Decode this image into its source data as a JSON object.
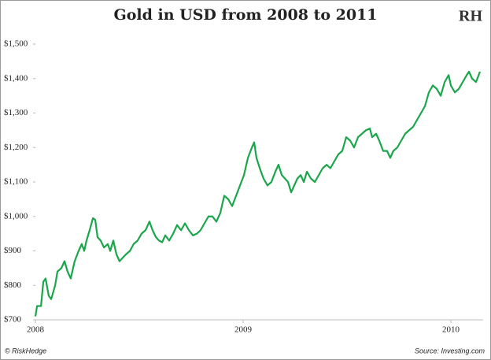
{
  "chart_data": {
    "type": "line",
    "title": "Gold in USD from 2008 to 2011",
    "logo": "RH",
    "credit": "© RiskHedge",
    "source": "Source: Investing.com",
    "color": "#1aa64a",
    "xlim": [
      2008,
      2010.14
    ],
    "xticks": [
      2008,
      2009,
      2010
    ],
    "ylim": [
      700,
      1500
    ],
    "yticks": [
      {
        "value": 700,
        "label": "$700"
      },
      {
        "value": 800,
        "label": "$800"
      },
      {
        "value": 900,
        "label": "$900"
      },
      {
        "value": 1000,
        "label": "$1,000"
      },
      {
        "value": 1100,
        "label": "$1,100"
      },
      {
        "value": 1200,
        "label": "$1,200"
      },
      {
        "value": 1300,
        "label": "$1,300"
      },
      {
        "value": 1400,
        "label": "$1,400"
      },
      {
        "value": 1500,
        "label": "$1,500"
      }
    ],
    "x": [
      2008.0,
      2008.008,
      2008.027,
      2008.038,
      2008.049,
      2008.064,
      2008.076,
      2008.095,
      2008.106,
      2008.125,
      2008.14,
      2008.155,
      2008.17,
      2008.189,
      2008.208,
      2008.223,
      2008.235,
      2008.246,
      2008.261,
      2008.277,
      2008.288,
      2008.299,
      2008.314,
      2008.33,
      2008.348,
      2008.36,
      2008.375,
      2008.39,
      2008.405,
      2008.42,
      2008.436,
      2008.455,
      2008.473,
      2008.492,
      2008.511,
      2008.53,
      2008.549,
      2008.564,
      2008.58,
      2008.595,
      2008.61,
      2008.625,
      2008.644,
      2008.663,
      2008.682,
      2008.701,
      2008.72,
      2008.739,
      2008.758,
      2008.777,
      2008.795,
      2008.814,
      2008.833,
      2008.852,
      2008.871,
      2008.89,
      2008.909,
      2008.928,
      2008.947,
      2008.966,
      2008.985,
      2009.004,
      2009.023,
      2009.042,
      2009.053,
      2009.064,
      2009.08,
      2009.098,
      2009.117,
      2009.136,
      2009.155,
      2009.17,
      2009.186,
      2009.201,
      2009.216,
      2009.231,
      2009.246,
      2009.261,
      2009.277,
      2009.292,
      2009.307,
      2009.326,
      2009.345,
      2009.364,
      2009.383,
      2009.402,
      2009.42,
      2009.439,
      2009.458,
      2009.477,
      2009.496,
      2009.515,
      2009.534,
      2009.553,
      2009.572,
      2009.591,
      2009.61,
      2009.621,
      2009.64,
      2009.655,
      2009.674,
      2009.693,
      2009.708,
      2009.723,
      2009.742,
      2009.761,
      2009.78,
      2009.799,
      2009.818,
      2009.837,
      2009.856,
      2009.875,
      2009.894,
      2009.913,
      2009.932,
      2009.951,
      2009.97,
      2009.989,
      2010.0,
      2010.019,
      2010.038,
      2010.057,
      2010.076,
      2010.087,
      2010.102,
      2010.121,
      2010.14
    ],
    "values": [
      710,
      740,
      740,
      810,
      820,
      770,
      760,
      800,
      840,
      850,
      870,
      840,
      820,
      870,
      900,
      920,
      900,
      930,
      960,
      995,
      990,
      940,
      930,
      910,
      920,
      900,
      930,
      890,
      870,
      880,
      890,
      900,
      920,
      930,
      950,
      960,
      985,
      960,
      940,
      930,
      925,
      945,
      930,
      950,
      975,
      960,
      980,
      960,
      945,
      950,
      960,
      980,
      1000,
      1000,
      985,
      1010,
      1060,
      1050,
      1030,
      1060,
      1090,
      1120,
      1170,
      1200,
      1215,
      1170,
      1140,
      1110,
      1090,
      1100,
      1130,
      1150,
      1120,
      1110,
      1100,
      1070,
      1090,
      1110,
      1120,
      1100,
      1130,
      1110,
      1100,
      1120,
      1140,
      1150,
      1140,
      1160,
      1180,
      1190,
      1230,
      1220,
      1200,
      1230,
      1240,
      1250,
      1255,
      1230,
      1240,
      1220,
      1190,
      1190,
      1170,
      1190,
      1200,
      1220,
      1240,
      1250,
      1260,
      1280,
      1300,
      1320,
      1360,
      1380,
      1370,
      1350,
      1390,
      1410,
      1380,
      1360,
      1370,
      1390,
      1410,
      1420,
      1400,
      1390,
      1420
    ]
  }
}
